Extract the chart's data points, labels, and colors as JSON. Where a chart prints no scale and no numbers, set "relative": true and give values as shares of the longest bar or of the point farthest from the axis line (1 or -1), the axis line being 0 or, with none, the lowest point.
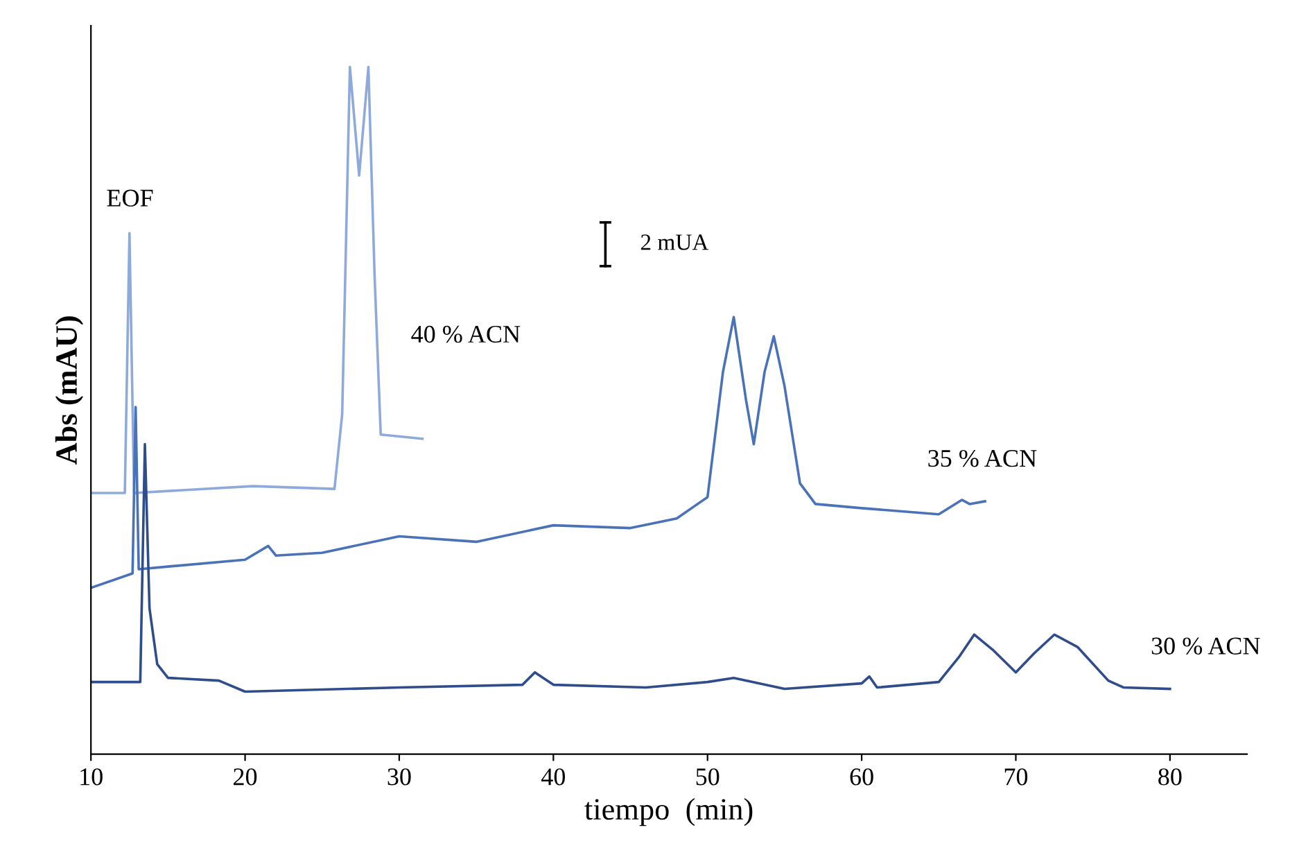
{
  "chart_data": {
    "type": "line",
    "relative": true,
    "xlabel": "tiempo  (min)",
    "ylabel": "Abs (mAU)",
    "xlim": [
      10,
      85
    ],
    "xticks": [
      10,
      20,
      30,
      40,
      50,
      60,
      70,
      80
    ],
    "grid": false,
    "legend": false,
    "marker": "none",
    "line_style": "solid",
    "annotations": [
      {
        "text": "EOF",
        "x": 12.5,
        "y": 0.758
      },
      "2 mUA"
    ],
    "series": [
      {
        "name": "40 % ACN",
        "color": "#8eaadb",
        "x": [
          10,
          12.2,
          12.5,
          12.8,
          20.5,
          25.8,
          26.3,
          26.8,
          27.4,
          28.0,
          28.4,
          28.8,
          31.5
        ],
        "values": [
          0.38,
          0.38,
          0.758,
          0.38,
          0.39,
          0.386,
          0.495,
          1.0,
          0.842,
          1.0,
          0.697,
          0.465,
          0.459
        ]
      },
      {
        "name": "35 % ACN",
        "color": "#4a72b8",
        "x": [
          10,
          12.7,
          12.9,
          13.1,
          15,
          20,
          21.5,
          22,
          25,
          30,
          35,
          40,
          45,
          48,
          50,
          51,
          51.7,
          52.5,
          53,
          53.7,
          54.3,
          55,
          56,
          57,
          60,
          65,
          66.5,
          67,
          68
        ],
        "values": [
          0.242,
          0.263,
          0.505,
          0.269,
          0.273,
          0.283,
          0.303,
          0.289,
          0.293,
          0.317,
          0.309,
          0.333,
          0.329,
          0.343,
          0.374,
          0.556,
          0.636,
          0.515,
          0.451,
          0.556,
          0.608,
          0.535,
          0.394,
          0.364,
          0.358,
          0.349,
          0.37,
          0.364,
          0.368
        ]
      },
      {
        "name": "30 % ACN",
        "color": "#2f4d8a",
        "x": [
          10,
          13.2,
          13.5,
          13.8,
          14.3,
          15,
          18.3,
          20,
          30,
          38,
          38.8,
          40,
          46,
          50,
          51.7,
          55,
          60,
          60.5,
          61,
          65,
          66.3,
          67.3,
          68.5,
          70,
          71.2,
          72.5,
          74,
          76,
          77,
          80
        ],
        "values": [
          0.105,
          0.105,
          0.451,
          0.212,
          0.131,
          0.111,
          0.107,
          0.091,
          0.097,
          0.101,
          0.119,
          0.101,
          0.097,
          0.105,
          0.111,
          0.095,
          0.103,
          0.113,
          0.097,
          0.105,
          0.141,
          0.174,
          0.152,
          0.119,
          0.147,
          0.174,
          0.156,
          0.107,
          0.097,
          0.095
        ]
      }
    ]
  }
}
